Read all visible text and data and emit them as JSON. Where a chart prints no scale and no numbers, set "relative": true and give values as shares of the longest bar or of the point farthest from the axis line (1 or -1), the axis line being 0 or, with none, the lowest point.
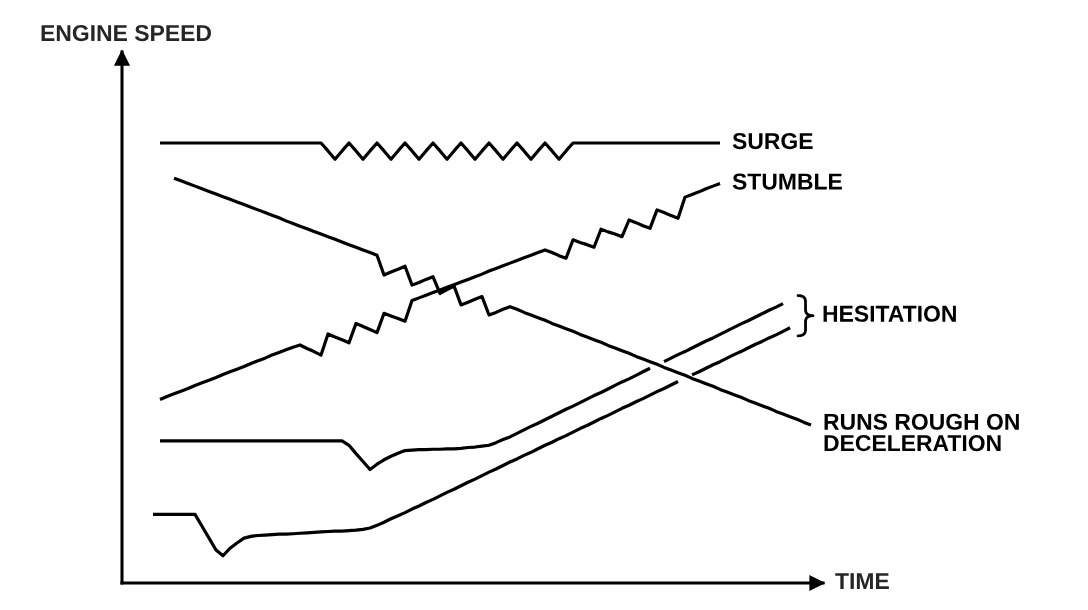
{
  "chart_data": {
    "type": "line",
    "xlabel": "TIME",
    "ylabel": "ENGINE SPEED",
    "relative": true,
    "tick_labels": false,
    "line_style": "solid",
    "categories": [
      null,
      null,
      null,
      null,
      null,
      null,
      null,
      null,
      null,
      null,
      null,
      null,
      null,
      null,
      null,
      null,
      null,
      null,
      null,
      null,
      null,
      null,
      null,
      null,
      null,
      null,
      null,
      null,
      null,
      null,
      null,
      null,
      null,
      null,
      null,
      null,
      null,
      null,
      null,
      null,
      null,
      null,
      null,
      null,
      null,
      null,
      null,
      null,
      null,
      null,
      null,
      null,
      null,
      null,
      null,
      null,
      null,
      null,
      null,
      null,
      null,
      null,
      null,
      null,
      null,
      null,
      null,
      null,
      null,
      null,
      null,
      null,
      null,
      null,
      null,
      null,
      null,
      null,
      null,
      null,
      null,
      null,
      null,
      null,
      null,
      null,
      null,
      null,
      null,
      null,
      null,
      null,
      null,
      null,
      null,
      null
    ],
    "series": [
      {
        "name": "SURGE",
        "color": "#000000",
        "values": [
          null,
          1,
          1,
          1,
          1,
          1,
          1,
          1,
          1,
          1,
          1,
          1,
          1,
          1,
          1,
          1,
          1,
          1,
          1,
          1,
          1,
          1,
          1,
          1,
          1,
          0.982,
          0.963,
          0.982,
          1,
          0.982,
          0.963,
          0.982,
          1,
          0.982,
          0.963,
          0.982,
          1,
          0.982,
          0.963,
          0.982,
          1,
          0.982,
          0.963,
          0.982,
          1,
          0.982,
          0.963,
          0.982,
          1,
          0.982,
          0.963,
          0.982,
          1,
          0.982,
          0.963,
          0.982,
          1,
          0.982,
          0.963,
          0.982,
          1,
          1,
          1,
          1,
          1,
          1,
          1,
          1,
          1,
          1,
          1,
          1,
          1,
          1,
          1,
          1,
          1,
          1,
          1,
          1,
          1,
          1,
          null,
          null,
          null,
          null,
          null,
          null,
          null,
          null,
          null,
          null,
          null,
          null,
          null,
          null
        ]
      },
      {
        "name": "STUMBLE",
        "color": "#000000",
        "values": [
          null,
          0.417,
          0.424,
          0.43,
          0.436,
          0.442,
          0.449,
          0.455,
          0.461,
          0.467,
          0.474,
          0.48,
          0.486,
          0.492,
          0.499,
          0.505,
          0.511,
          0.518,
          0.524,
          0.53,
          0.536,
          0.541,
          0.533,
          0.526,
          0.518,
          0.566,
          0.559,
          0.553,
          0.546,
          0.59,
          0.583,
          0.576,
          0.569,
          0.613,
          0.607,
          0.601,
          0.595,
          0.642,
          0.648,
          0.654,
          0.66,
          0.666,
          0.672,
          0.678,
          0.684,
          0.69,
          0.696,
          0.702,
          0.709,
          0.715,
          0.721,
          0.727,
          0.733,
          0.739,
          0.745,
          0.751,
          0.757,
          0.751,
          0.744,
          0.738,
          0.78,
          0.774,
          0.769,
          0.763,
          0.804,
          0.798,
          0.793,
          0.787,
          0.825,
          0.819,
          0.812,
          0.806,
          0.848,
          0.842,
          0.835,
          0.829,
          0.877,
          0.883,
          0.889,
          0.896,
          0.902,
          0.908,
          null,
          null,
          null,
          null,
          null,
          null,
          null,
          null,
          null,
          null,
          null,
          null,
          null,
          null
        ]
      },
      {
        "name": "RUNS ROUGH ON\nDECELERATION",
        "color": "#000000",
        "values": [
          null,
          null,
          null,
          0.92,
          0.914,
          0.908,
          0.902,
          0.896,
          0.89,
          0.884,
          0.878,
          0.872,
          0.866,
          0.86,
          0.854,
          0.848,
          0.842,
          0.836,
          0.83,
          0.823,
          0.817,
          0.811,
          0.805,
          0.799,
          0.793,
          0.787,
          0.781,
          0.775,
          0.769,
          0.763,
          0.757,
          0.751,
          0.745,
          0.7,
          0.707,
          0.713,
          0.72,
          0.677,
          0.683,
          0.69,
          0.696,
          0.658,
          0.667,
          0.675,
          0.632,
          0.638,
          0.645,
          0.651,
          0.609,
          0.615,
          0.622,
          0.628,
          0.622,
          0.615,
          0.609,
          0.603,
          0.597,
          0.59,
          0.584,
          0.578,
          0.572,
          0.565,
          0.559,
          0.553,
          0.547,
          0.54,
          0.534,
          0.528,
          0.522,
          0.515,
          0.509,
          0.503,
          0.497,
          0.49,
          0.484,
          0.478,
          0.472,
          0.465,
          0.459,
          0.453,
          0.447,
          0.44,
          0.434,
          0.428,
          0.422,
          0.415,
          0.409,
          0.403,
          0.397,
          0.39,
          0.384,
          0.378,
          0.372,
          0.365,
          0.359,
          null
        ]
      },
      {
        "name": "HESITATION",
        "color": "#000000",
        "values": [
          null,
          0.323,
          0.323,
          0.323,
          0.323,
          0.323,
          0.323,
          0.323,
          0.323,
          0.323,
          0.323,
          0.323,
          0.323,
          0.323,
          0.323,
          0.323,
          0.323,
          0.323,
          0.323,
          0.323,
          0.323,
          0.323,
          0.323,
          0.323,
          0.323,
          0.323,
          0.323,
          0.323,
          0.313,
          0.294,
          0.276,
          0.258,
          0.27,
          0.28,
          0.288,
          0.295,
          0.301,
          0.302,
          0.303,
          0.303,
          0.304,
          0.304,
          0.305,
          0.305,
          0.306,
          0.308,
          0.309,
          0.311,
          0.313,
          0.319,
          0.326,
          0.332,
          0.34,
          0.348,
          0.356,
          0.363,
          0.371,
          0.379,
          0.387,
          0.395,
          0.402,
          0.41,
          0.418,
          0.426,
          0.433,
          0.441,
          0.449,
          0.457,
          0.464,
          0.472,
          0.48,
          0.488,
          null,
          0.503,
          0.511,
          0.519,
          0.526,
          0.534,
          0.542,
          0.55,
          0.557,
          0.565,
          0.573,
          0.581,
          0.589,
          0.596,
          0.604,
          0.612,
          0.62,
          0.627,
          0.635,
          null,
          null,
          null,
          null,
          null
        ]
      },
      {
        "color": "#000000",
        "values": [
          0.156,
          0.156,
          0.156,
          0.156,
          0.156,
          0.156,
          0.156,
          0.129,
          0.102,
          0.075,
          0.062,
          0.079,
          0.091,
          0.102,
          0.106,
          0.108,
          0.109,
          0.11,
          0.111,
          0.111,
          0.112,
          0.113,
          0.114,
          0.115,
          0.116,
          0.117,
          0.118,
          0.118,
          0.119,
          0.12,
          0.122,
          0.125,
          0.131,
          0.138,
          0.146,
          0.153,
          0.16,
          0.168,
          0.175,
          0.183,
          0.19,
          0.198,
          0.206,
          0.213,
          0.221,
          0.229,
          0.236,
          0.244,
          0.252,
          0.259,
          0.267,
          0.275,
          0.282,
          0.29,
          0.297,
          0.305,
          0.313,
          0.32,
          0.328,
          0.335,
          0.343,
          0.351,
          0.358,
          0.366,
          0.374,
          0.381,
          0.389,
          0.397,
          0.404,
          0.412,
          0.419,
          0.427,
          0.435,
          0.442,
          0.45,
          0.458,
          null,
          0.473,
          0.48,
          0.488,
          0.496,
          0.503,
          0.511,
          0.519,
          0.526,
          0.534,
          0.542,
          0.549,
          0.557,
          0.564,
          0.572,
          0.58,
          null,
          null,
          null,
          null
        ]
      }
    ]
  }
}
